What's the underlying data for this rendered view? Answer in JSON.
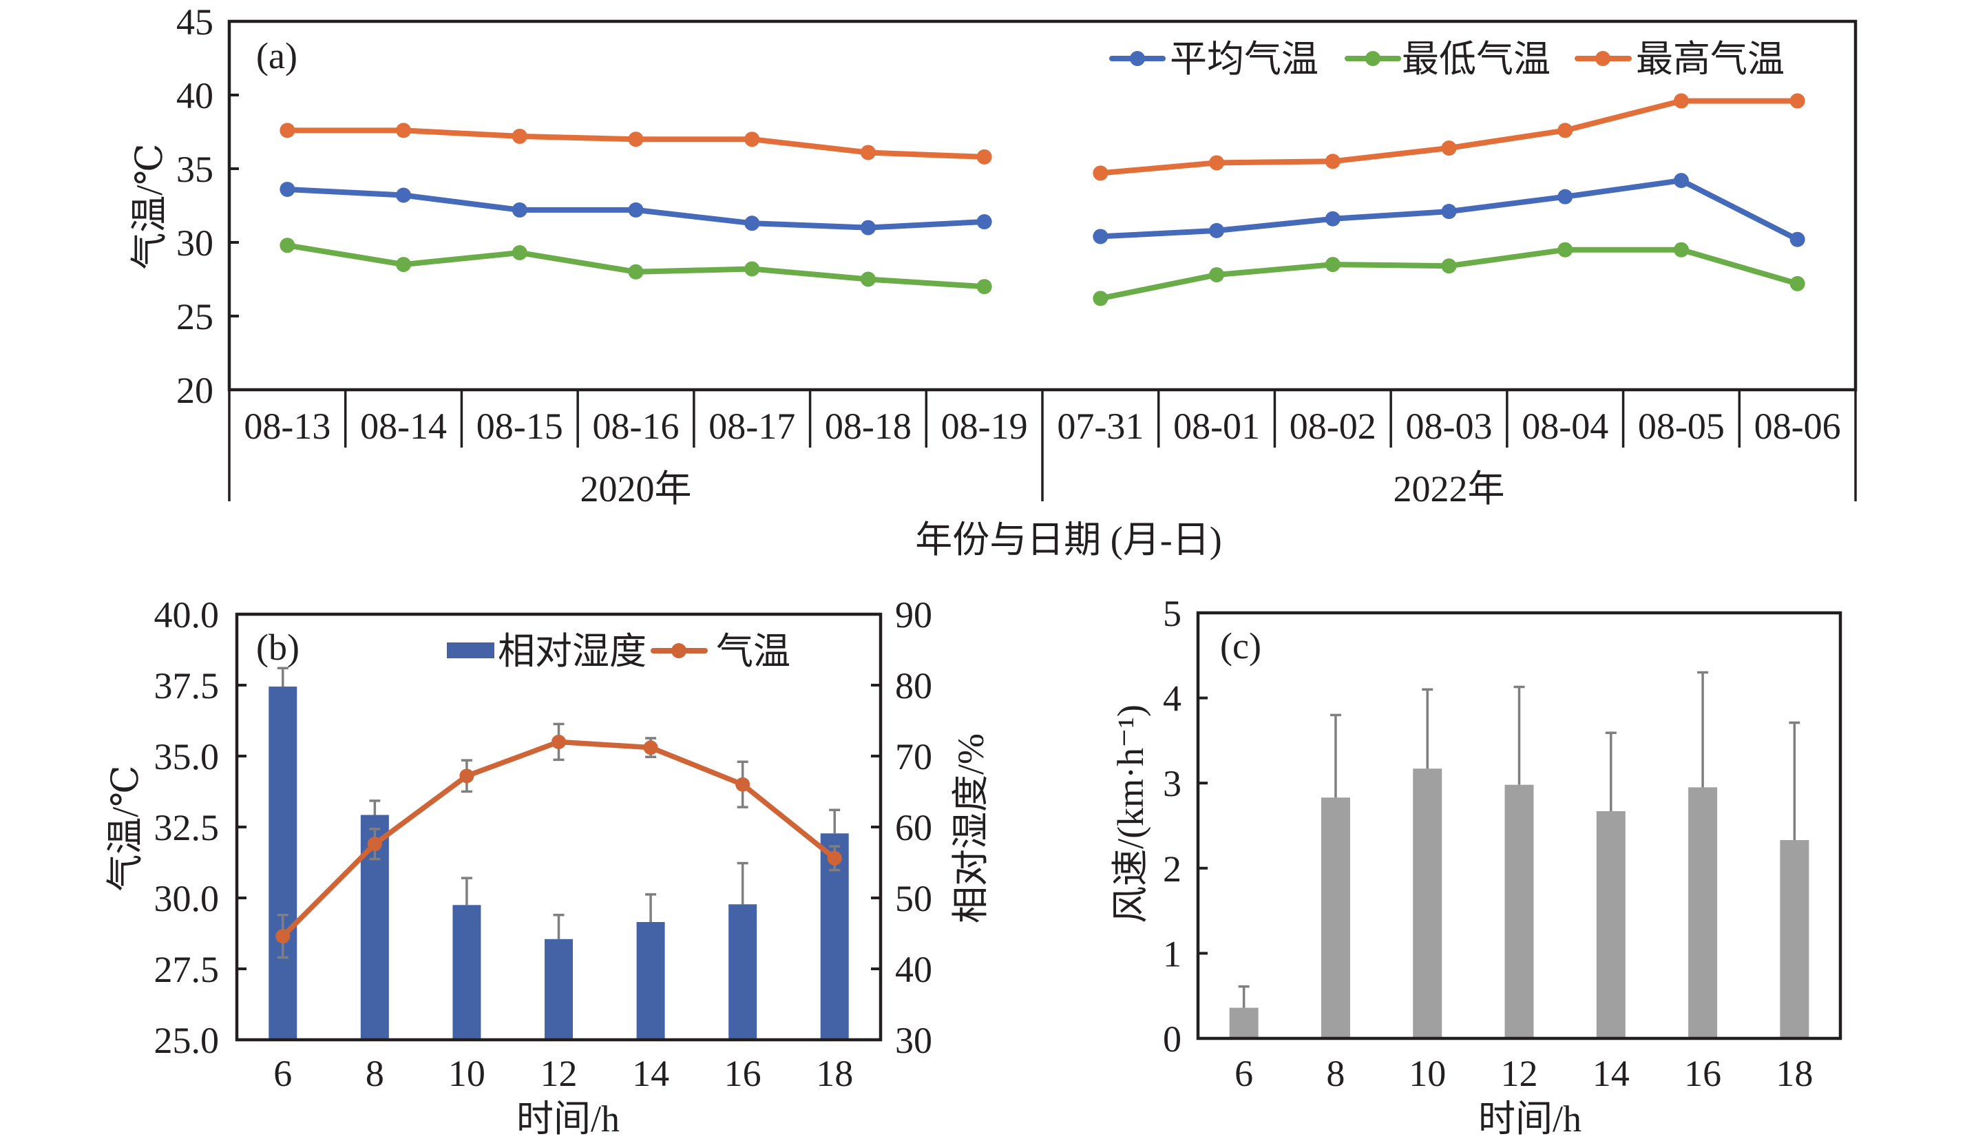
{
  "chart_data": [
    {
      "panel_label": "(a)",
      "type": "line",
      "title": "",
      "ylabel": "气温/℃",
      "xlabel": "年份与日期 (月-日)",
      "ylim": [
        20,
        45
      ],
      "yticks": [
        "20",
        "25",
        "30",
        "35",
        "40",
        "45"
      ],
      "grid": false,
      "legend": "top-right",
      "categories": [
        "08-13",
        "08-14",
        "08-15",
        "08-16",
        "08-17",
        "08-18",
        "08-19",
        "07-31",
        "08-01",
        "08-02",
        "08-03",
        "08-04",
        "08-05",
        "08-06"
      ],
      "groups": [
        {
          "label": "2020年",
          "start": 0,
          "count": 7
        },
        {
          "label": "2022年",
          "start": 7,
          "count": 7
        }
      ],
      "series": [
        {
          "name": "平均气温",
          "color": "#446AB9",
          "marker": "circle",
          "values": [
            33.6,
            33.2,
            32.2,
            32.2,
            31.3,
            31.0,
            31.4,
            30.4,
            30.8,
            31.6,
            32.1,
            33.1,
            34.2,
            30.2
          ]
        },
        {
          "name": "最低气温",
          "color": "#6AAC47",
          "marker": "circle",
          "values": [
            29.8,
            28.5,
            29.3,
            28.0,
            28.2,
            27.5,
            27.0,
            26.2,
            27.8,
            28.5,
            28.4,
            29.5,
            29.5,
            27.2
          ]
        },
        {
          "name": "最高气温",
          "color": "#E26F3A",
          "marker": "circle",
          "values": [
            37.6,
            37.6,
            37.2,
            37.0,
            37.0,
            36.1,
            35.8,
            34.7,
            35.4,
            35.5,
            36.4,
            37.6,
            39.6,
            39.6
          ]
        }
      ]
    },
    {
      "panel_label": "(b)",
      "type": "bar+line",
      "title": "",
      "xlabel": "时间/h",
      "ylabel_left": "气温/℃",
      "ylabel_right": "相对湿度/%",
      "categories": [
        "6",
        "8",
        "10",
        "12",
        "14",
        "16",
        "18"
      ],
      "ylim_left": [
        25.0,
        40.0
      ],
      "yticks_left": [
        "25.0",
        "27.5",
        "30.0",
        "32.5",
        "35.0",
        "37.5",
        "40.0"
      ],
      "ylim_right": [
        30,
        90
      ],
      "yticks_right": [
        "30",
        "40",
        "50",
        "60",
        "70",
        "80",
        "90"
      ],
      "grid": false,
      "legend": "top-center",
      "error_bar_color": "#7F7F7F",
      "series": [
        {
          "name": "相对湿度",
          "type": "bar",
          "axis": "right",
          "color": "#4463A7",
          "values": [
            79.8,
            61.7,
            49.0,
            44.2,
            46.6,
            49.1,
            59.1
          ],
          "error": [
            2.6,
            2.0,
            3.8,
            3.4,
            3.9,
            5.8,
            3.3
          ],
          "error_direction": "plus"
        },
        {
          "name": "气温",
          "type": "line",
          "axis": "left",
          "color": "#CF6536",
          "values": [
            28.65,
            31.9,
            34.3,
            35.5,
            35.3,
            34.0,
            31.4
          ],
          "error": [
            0.75,
            0.53,
            0.55,
            0.63,
            0.33,
            0.8,
            0.42
          ],
          "error_direction": "both"
        }
      ]
    },
    {
      "panel_label": "(c)",
      "type": "bar",
      "title": "",
      "xlabel": "时间/h",
      "ylabel": "风速/(km·h⁻¹)",
      "categories": [
        "6",
        "8",
        "10",
        "12",
        "14",
        "16",
        "18"
      ],
      "ylim": [
        0,
        5
      ],
      "yticks": [
        "0",
        "1",
        "2",
        "3",
        "4",
        "5"
      ],
      "grid": false,
      "error_bar_color": "#7F7F7F",
      "series": [
        {
          "type": "bar",
          "color": "#A0A0A0",
          "values": [
            0.36,
            2.83,
            3.17,
            2.98,
            2.67,
            2.95,
            2.33
          ],
          "error": [
            0.25,
            0.97,
            0.93,
            1.15,
            0.92,
            1.35,
            1.38
          ],
          "error_direction": "plus"
        }
      ]
    }
  ]
}
